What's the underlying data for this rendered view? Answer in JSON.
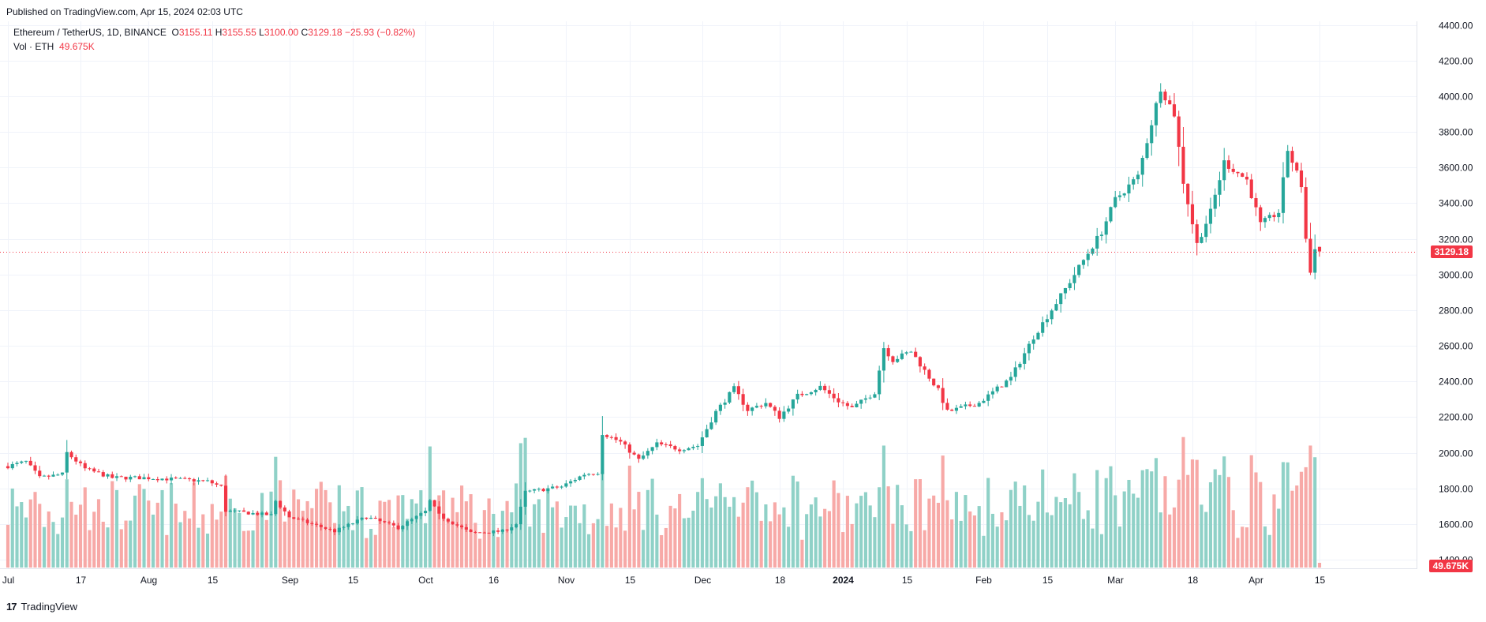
{
  "header": {
    "published": "Published on TradingView.com, Apr 15, 2024 02:03 UTC"
  },
  "legend": {
    "symbol": "Ethereum / TetherUS, 1D, BINANCE",
    "o_label": "O",
    "o_value": "3155.11",
    "h_label": "H",
    "h_value": "3155.55",
    "l_label": "L",
    "l_value": "3100.00",
    "c_label": "C",
    "c_value": "3129.18",
    "change": "−25.93 (−0.82%)",
    "vol_label": "Vol · ETH",
    "vol_value": "49.675K"
  },
  "badges": {
    "price": "3129.18",
    "volume": "49.675K"
  },
  "footer": {
    "brand": "TradingView",
    "logo": "17"
  },
  "colors": {
    "up": "#26a69a",
    "down": "#f23645",
    "vol_up": "#8fd1c7",
    "vol_down": "#f7a9a7",
    "grid": "#f0f3fa"
  },
  "chart_data": {
    "type": "candlestick",
    "symbol": "ETHUSDT",
    "interval": "1D",
    "y_ticks": [
      1400,
      1600,
      1800,
      2000,
      2200,
      2400,
      2600,
      2800,
      3000,
      3200,
      3400,
      3600,
      3800,
      4000,
      4200,
      4400
    ],
    "ylim": [
      1290,
      4420
    ],
    "x_ticks": [
      {
        "label": "Jul",
        "date": "2023-07-01"
      },
      {
        "label": "17",
        "date": "2023-07-17"
      },
      {
        "label": "Aug",
        "date": "2023-08-01"
      },
      {
        "label": "15",
        "date": "2023-08-15"
      },
      {
        "label": "Sep",
        "date": "2023-09-01"
      },
      {
        "label": "15",
        "date": "2023-09-15"
      },
      {
        "label": "Oct",
        "date": "2023-10-01"
      },
      {
        "label": "16",
        "date": "2023-10-16"
      },
      {
        "label": "Nov",
        "date": "2023-11-01"
      },
      {
        "label": "15",
        "date": "2023-11-15"
      },
      {
        "label": "Dec",
        "date": "2023-12-01"
      },
      {
        "label": "18",
        "date": "2023-12-18"
      },
      {
        "label": "2024",
        "date": "2024-01-01"
      },
      {
        "label": "15",
        "date": "2024-01-15"
      },
      {
        "label": "Feb",
        "date": "2024-02-01"
      },
      {
        "label": "15",
        "date": "2024-02-15"
      },
      {
        "label": "Mar",
        "date": "2024-03-01"
      },
      {
        "label": "18",
        "date": "2024-03-18"
      },
      {
        "label": "Apr",
        "date": "2024-04-01"
      },
      {
        "label": "15",
        "date": "2024-04-15"
      }
    ],
    "close_anchors": [
      [
        "2023-07-01",
        1925
      ],
      [
        "2023-07-05",
        1950
      ],
      [
        "2023-07-08",
        1860
      ],
      [
        "2023-07-13",
        1880
      ],
      [
        "2023-07-14",
        2000
      ],
      [
        "2023-07-18",
        1910
      ],
      [
        "2023-07-24",
        1860
      ],
      [
        "2023-07-31",
        1860
      ],
      [
        "2023-08-08",
        1850
      ],
      [
        "2023-08-14",
        1840
      ],
      [
        "2023-08-17",
        1810
      ],
      [
        "2023-08-18",
        1675
      ],
      [
        "2023-08-28",
        1650
      ],
      [
        "2023-08-29",
        1730
      ],
      [
        "2023-09-01",
        1640
      ],
      [
        "2023-09-11",
        1560
      ],
      [
        "2023-09-18",
        1640
      ],
      [
        "2023-09-25",
        1580
      ],
      [
        "2023-10-01",
        1670
      ],
      [
        "2023-10-02",
        1730
      ],
      [
        "2023-10-04",
        1650
      ],
      [
        "2023-10-11",
        1550
      ],
      [
        "2023-10-18",
        1560
      ],
      [
        "2023-10-21",
        1600
      ],
      [
        "2023-10-23",
        1780
      ],
      [
        "2023-10-31",
        1810
      ],
      [
        "2023-11-05",
        1880
      ],
      [
        "2023-11-08",
        1890
      ],
      [
        "2023-11-09",
        2110
      ],
      [
        "2023-11-13",
        2060
      ],
      [
        "2023-11-17",
        1960
      ],
      [
        "2023-11-21",
        2050
      ],
      [
        "2023-11-26",
        2020
      ],
      [
        "2023-11-30",
        2040
      ],
      [
        "2023-12-04",
        2230
      ],
      [
        "2023-12-08",
        2360
      ],
      [
        "2023-12-11",
        2240
      ],
      [
        "2023-12-15",
        2280
      ],
      [
        "2023-12-18",
        2200
      ],
      [
        "2023-12-22",
        2320
      ],
      [
        "2023-12-27",
        2370
      ],
      [
        "2023-12-31",
        2290
      ],
      [
        "2024-01-03",
        2250
      ],
      [
        "2024-01-08",
        2340
      ],
      [
        "2024-01-10",
        2590
      ],
      [
        "2024-01-12",
        2520
      ],
      [
        "2024-01-16",
        2570
      ],
      [
        "2024-01-19",
        2460
      ],
      [
        "2024-01-22",
        2350
      ],
      [
        "2024-01-24",
        2230
      ],
      [
        "2024-01-31",
        2280
      ],
      [
        "2024-02-07",
        2420
      ],
      [
        "2024-02-12",
        2650
      ],
      [
        "2024-02-18",
        2880
      ],
      [
        "2024-02-27",
        3240
      ],
      [
        "2024-03-01",
        3420
      ],
      [
        "2024-03-06",
        3550
      ],
      [
        "2024-03-11",
        4050
      ],
      [
        "2024-03-14",
        3900
      ],
      [
        "2024-03-16",
        3520
      ],
      [
        "2024-03-19",
        3170
      ],
      [
        "2024-03-22",
        3350
      ],
      [
        "2024-03-25",
        3630
      ],
      [
        "2024-03-30",
        3530
      ],
      [
        "2024-04-02",
        3280
      ],
      [
        "2024-04-06",
        3350
      ],
      [
        "2024-04-08",
        3700
      ],
      [
        "2024-04-11",
        3500
      ],
      [
        "2024-04-12",
        3200
      ],
      [
        "2024-04-13",
        3010
      ],
      [
        "2024-04-14",
        3155
      ],
      [
        "2024-04-15",
        3129.18
      ]
    ],
    "volume_scale": "relative",
    "last": {
      "open": 3155.11,
      "high": 3155.55,
      "low": 3100.0,
      "close": 3129.18,
      "volume": "49.675K"
    }
  }
}
